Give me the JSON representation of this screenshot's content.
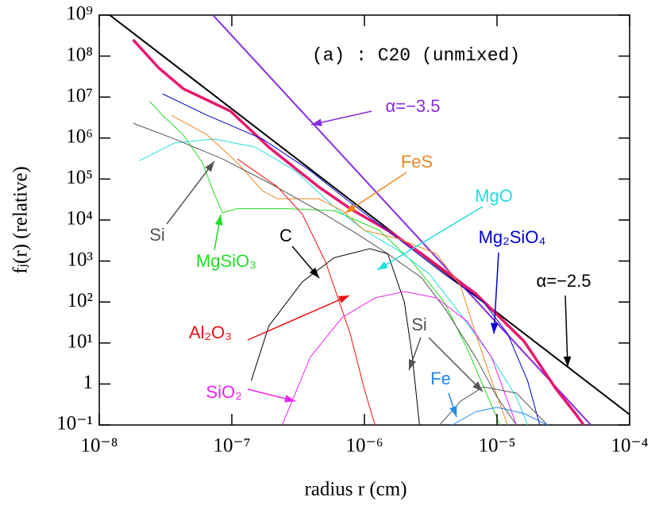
{
  "chart_data": {
    "type": "line",
    "title": "(a) : C20 (unmixed)",
    "x_label": "radius r (cm)",
    "y_label": "fⱼ(r) (relative)",
    "log_x": true,
    "log_y": true,
    "xlim": [
      1e-08,
      0.0001
    ],
    "ylim": [
      0.1,
      1000000000.0
    ],
    "xticks": [
      {
        "value": 1e-08,
        "label": "10⁻⁸"
      },
      {
        "value": 1e-07,
        "label": "10⁻⁷"
      },
      {
        "value": 1e-06,
        "label": "10⁻⁶"
      },
      {
        "value": 1e-05,
        "label": "10⁻⁵"
      },
      {
        "value": 0.0001,
        "label": "10⁻⁴"
      }
    ],
    "yticks": [
      {
        "value": 0.1,
        "label": "10⁻¹"
      },
      1,
      {
        "value": 10,
        "label": "10¹"
      },
      {
        "value": 100,
        "label": "10²"
      },
      {
        "value": 1000,
        "label": "10³"
      },
      {
        "value": 10000,
        "label": "10⁴"
      },
      {
        "value": 100000,
        "label": "10⁵"
      },
      {
        "value": 1000000,
        "label": "10⁶"
      },
      {
        "value": 10000000,
        "label": "10⁷"
      },
      {
        "value": 100000000,
        "label": "10⁸"
      },
      {
        "value": 1000000000,
        "label": "10⁹"
      }
    ],
    "series": [
      {
        "name": "α=−2.5",
        "color": "#000000",
        "x": [
          1.2e-08,
          0.0001
        ],
        "values": [
          1000000000.0,
          0.18
        ]
      },
      {
        "name": "α=−3.5",
        "color": "#8a2be2",
        "x": [
          7.2e-08,
          5.1e-05
        ],
        "values": [
          1000000000.0,
          0.1
        ]
      },
      {
        "color": "#e8176f",
        "x": [
          1.8e-08,
          2.8e-08,
          4.3e-08,
          9.8e-08,
          1.9e-07,
          4.5e-07,
          7.8e-07,
          1.5e-06,
          2.7e-06,
          6.9e-06,
          1.6e-05,
          2.8e-05,
          3.9e-05,
          4.5e-05
        ],
        "values": [
          250000000.0,
          52000000.0,
          16000000.0,
          4500000.0,
          600000.0,
          65000.0,
          19000.0,
          5600,
          1500,
          160,
          11,
          0.74,
          0.19,
          0.1
        ]
      },
      {
        "name": "Mg₂SiO₄",
        "color": "#0000d0",
        "x": [
          3e-08,
          6.5e-08,
          1.7e-07,
          3.9e-07,
          7.8e-07,
          1.8e-06,
          4e-06,
          7.9e-06,
          1.2e-05,
          1.7e-05,
          2.1e-05
        ],
        "values": [
          12000000.0,
          3600000.0,
          950000.0,
          160000.0,
          27000.0,
          3500,
          480,
          100,
          17,
          1.2,
          0.1
        ]
      },
      {
        "name": "MgSiO₃",
        "color": "#22dd22",
        "x": [
          2.4e-08,
          3e-08,
          4.3e-08,
          6e-08,
          7.4e-08,
          8.5e-08,
          1.1e-07,
          2.6e-07,
          5.9e-07,
          1.3e-06,
          2.3e-06,
          4e-06,
          6e-06,
          9.1e-06,
          1.05e-05
        ],
        "values": [
          7800000.0,
          3600000.0,
          1200000.0,
          250000.0,
          42000.0,
          15000.0,
          19000.0,
          19000.0,
          17000.0,
          5600,
          940,
          100,
          6.9,
          0.3,
          0.1
        ]
      },
      {
        "name": "MgO",
        "color": "#22dddd",
        "x": [
          2e-08,
          3.7e-08,
          7.4e-08,
          1.5e-07,
          3e-07,
          5.9e-07,
          1e-06,
          1.8e-06,
          3.1e-06,
          5.3e-06,
          9.1e-06,
          1.4e-05,
          1.7e-05
        ],
        "values": [
          280000.0,
          760000.0,
          950000.0,
          600000.0,
          160000.0,
          21000.0,
          5600,
          1800,
          480,
          51,
          4.5,
          0.48,
          0.1
        ]
      },
      {
        "name": "FeS",
        "color": "#ee8822",
        "x": [
          3.5e-08,
          6.5e-08,
          1.1e-07,
          1.7e-07,
          2.2e-07,
          4.5e-07,
          6.8e-07,
          1e-06,
          1.8e-06,
          3.5e-06,
          5.3e-06,
          6.9e-06,
          9.1e-06,
          1.2e-05
        ],
        "values": [
          3600000.0,
          1200000.0,
          250000.0,
          52000.0,
          33000.0,
          33000.0,
          17000.0,
          5600,
          3500,
          1500,
          250,
          17,
          1.2,
          0.1
        ]
      },
      {
        "name": "Si",
        "color": "#555555",
        "x": [
          1.8e-08,
          3.7e-08,
          8.5e-08,
          1.9e-07,
          4.5e-07,
          8.9e-07,
          1.5e-06,
          2.7e-06,
          4.1e-06,
          6.9e-06,
          1e-05,
          1.4e-05
        ],
        "values": [
          2300000.0,
          950000.0,
          310000.0,
          81000.0,
          17000.0,
          4500,
          1500,
          390,
          65,
          4.5,
          0.48,
          0.1
        ]
      },
      {
        "name": "C",
        "color": "#000000",
        "x": [
          1.4e-07,
          1.9e-07,
          3.4e-07,
          5.9e-07,
          1.1e-06,
          1.5e-06,
          2e-06,
          2.3e-06,
          2.6e-06
        ],
        "values": [
          1.2,
          26,
          310,
          1200,
          2000,
          1500,
          100,
          4.5,
          0.1
        ]
      },
      {
        "name": "Al₂O₃",
        "color": "#ee1111",
        "x": [
          1.1e-07,
          2.2e-07,
          3.4e-07,
          5.1e-07,
          7.8e-07,
          1e-06,
          1.2e-06
        ],
        "values": [
          310000.0,
          65000.0,
          14000.0,
          940,
          17,
          0.74,
          0.1
        ]
      },
      {
        "name": "SiO₂",
        "color": "#ee22ee",
        "x": [
          2.4e-07,
          3.9e-07,
          6.8e-07,
          1.2e-06,
          2e-06,
          3.5e-06,
          6e-06,
          9.1e-06,
          1.4e-05
        ],
        "values": [
          0.1,
          4.5,
          42,
          126,
          180,
          126,
          33,
          4.5,
          0.1
        ]
      },
      {
        "name": "Si",
        "color": "#555555",
        "x": [
          3.7e-06,
          5.3e-06,
          7.9e-06,
          1.4e-05,
          2.4e-05
        ],
        "values": [
          0.1,
          0.38,
          0.85,
          0.6,
          0.1
        ]
      },
      {
        "name": "Fe",
        "color": "#2288ee",
        "x": [
          4.6e-06,
          6.9e-06,
          1e-05,
          1.6e-05,
          2.4e-05
        ],
        "values": [
          0.1,
          0.21,
          0.27,
          0.19,
          0.1
        ]
      }
    ]
  }
}
